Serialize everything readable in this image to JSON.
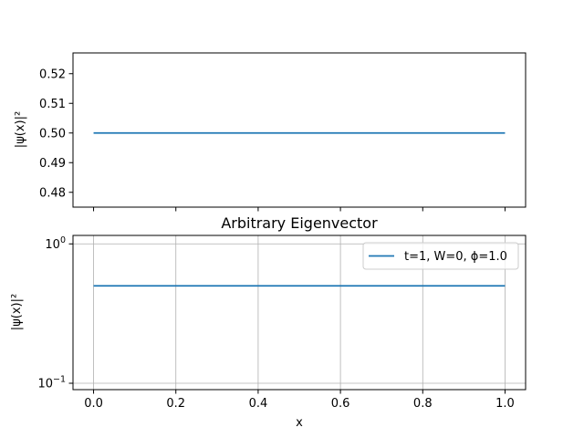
{
  "chart_data": [
    {
      "type": "line",
      "title": "",
      "xlabel": "",
      "ylabel": "|ψ(x)|²",
      "xlim": [
        -0.05,
        1.05
      ],
      "ylim": [
        0.475,
        0.527
      ],
      "yscale": "linear",
      "grid": false,
      "xticks": [
        0.0,
        0.2,
        0.4,
        0.6,
        0.8,
        1.0
      ],
      "xtick_labels_visible": false,
      "yticks": [
        0.48,
        0.49,
        0.5,
        0.51,
        0.52
      ],
      "ytick_labels": [
        "0.48",
        "0.49",
        "0.50",
        "0.51",
        "0.52"
      ],
      "color": "#1f77b4",
      "series": [
        {
          "x": [
            0.0,
            1.0
          ],
          "y": [
            0.5,
            0.5
          ]
        }
      ]
    },
    {
      "type": "line",
      "title": "Arbitrary Eigenvector",
      "xlabel": "x",
      "ylabel": "|ψ(x)|²",
      "xlim": [
        -0.05,
        1.05
      ],
      "ylim": [
        0.09,
        1.15
      ],
      "yscale": "log",
      "grid": true,
      "legend_position": "top-right",
      "xticks": [
        0.0,
        0.2,
        0.4,
        0.6,
        0.8,
        1.0
      ],
      "xtick_labels": [
        "0.0",
        "0.2",
        "0.4",
        "0.6",
        "0.8",
        "1.0"
      ],
      "yticks": [
        0.1,
        1.0
      ],
      "ytick_labels": [
        {
          "base": "10",
          "exp": "−1"
        },
        {
          "base": "10",
          "exp": "0"
        }
      ],
      "color": "#1f77b4",
      "series": [
        {
          "name": "t=1, W=0, ϕ=1.0",
          "x": [
            0.0,
            1.0
          ],
          "y": [
            0.5,
            0.5
          ]
        }
      ]
    }
  ]
}
